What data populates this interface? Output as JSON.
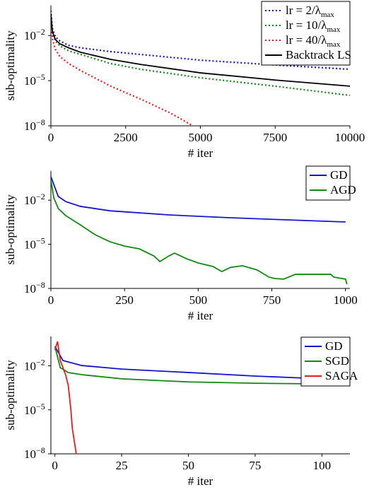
{
  "chart_data": [
    {
      "type": "line",
      "xlabel": "# iter",
      "ylabel": "sub-optimality",
      "xlim": [
        0,
        10000
      ],
      "ylim": [
        1e-08,
        1
      ],
      "yscale": "log",
      "xticks": [
        0,
        2500,
        5000,
        7500,
        10000
      ],
      "yticks": [
        {
          "value": 0.01,
          "label": "10−2"
        },
        {
          "value": 1e-05,
          "label": "10−5"
        },
        {
          "value": 1e-08,
          "label": "10−8"
        }
      ],
      "legend": "upper right",
      "series": [
        {
          "name": "lr = 2/λmax",
          "color": "#1515d0",
          "linestyle": "dotted",
          "x": [
            0,
            50,
            150,
            300,
            600,
            1000,
            2000,
            3000,
            5000,
            7500,
            10000
          ],
          "values": [
            0.45,
            0.03,
            0.0082,
            0.0043,
            0.0022,
            0.0015,
            0.00085,
            0.00055,
            0.00023,
            0.00011,
            5.7e-05
          ]
        },
        {
          "name": "lr = 10/λmax",
          "color": "#108a10",
          "linestyle": "dotted",
          "x": [
            0,
            50,
            150,
            300,
            600,
            1000,
            2000,
            3000,
            5000,
            7500,
            10000
          ],
          "values": [
            0.26,
            0.0175,
            0.0043,
            0.002,
            0.00095,
            0.00055,
            0.000135,
            5.7e-05,
            1.55e-05,
            4.3e-06,
            1.05e-06
          ]
        },
        {
          "name": "lr = 40/λmax",
          "color": "#e81c1c",
          "linestyle": "dotted",
          "x": [
            0,
            50,
            150,
            300,
            600,
            1000,
            2000,
            3000,
            4000,
            4750
          ],
          "values": [
            0.26,
            0.006,
            0.0012,
            0.0004,
            0.000135,
            4.6e-05,
            4.3e-06,
            6e-07,
            7e-08,
            1e-08
          ]
        },
        {
          "name": "Backtrack LS",
          "color": "#000000",
          "linestyle": "solid",
          "x": [
            0,
            50,
            150,
            300,
            600,
            1000,
            2000,
            3000,
            5000,
            7500,
            10000
          ],
          "values": [
            0.26,
            0.0175,
            0.0054,
            0.0028,
            0.0015,
            0.00076,
            0.00026,
            0.00012,
            3.3e-05,
            1.1e-05,
            4.3e-06
          ]
        }
      ]
    },
    {
      "type": "line",
      "xlabel": "# iter",
      "ylabel": "sub-optimality",
      "xlim": [
        0,
        1015
      ],
      "ylim": [
        1e-08,
        1
      ],
      "yscale": "log",
      "xticks": [
        0,
        250,
        500,
        750,
        1000
      ],
      "yticks": [
        {
          "value": 0.01,
          "label": "10−2"
        },
        {
          "value": 1e-05,
          "label": "10−5"
        },
        {
          "value": 1e-08,
          "label": "10−8"
        }
      ],
      "legend": "upper right",
      "series": [
        {
          "name": "GD",
          "color": "#1515d0",
          "linestyle": "solid",
          "x": [
            0,
            25,
            50,
            100,
            200,
            400,
            600,
            800,
            1000
          ],
          "values": [
            0.4,
            0.018,
            0.0081,
            0.0038,
            0.0019,
            0.001,
            0.00065,
            0.00046,
            0.00033
          ]
        },
        {
          "name": "AGD",
          "color": "#108a10",
          "linestyle": "solid",
          "x": [
            0,
            10,
            25,
            50,
            100,
            150,
            200,
            250,
            300,
            350,
            370,
            400,
            420,
            460,
            500,
            550,
            580,
            610,
            650,
            700,
            740,
            760,
            790,
            830,
            950,
            960,
            1000,
            1005
          ],
          "values": [
            0.23,
            0.014,
            0.0027,
            0.0009,
            0.00021,
            4.5e-05,
            1.5e-05,
            7.6e-06,
            4.9e-06,
            1.6e-06,
            6.7e-07,
            1.6e-06,
            2.5e-06,
            1.05e-06,
            5.4e-07,
            3.1e-07,
            1.4e-07,
            2.7e-07,
            3.5e-07,
            1.8e-07,
            5.9e-08,
            4.7e-08,
            4.3e-08,
            9.1e-08,
            9.1e-08,
            5.9e-08,
            4.3e-08,
            1.95e-08
          ]
        }
      ]
    },
    {
      "type": "line",
      "xlabel": "# iter",
      "ylabel": "sub-optimality",
      "xlim": [
        -1.5,
        110.5
      ],
      "ylim": [
        1e-08,
        1
      ],
      "yscale": "log",
      "xticks": [
        0,
        25,
        50,
        75,
        100
      ],
      "yticks": [
        {
          "value": 0.01,
          "label": "10−2"
        },
        {
          "value": 1e-05,
          "label": "10−5"
        },
        {
          "value": 1e-08,
          "label": "10−8"
        }
      ],
      "legend": "upper right",
      "series": [
        {
          "name": "GD",
          "color": "#1515d0",
          "linestyle": "solid",
          "x": [
            0,
            3,
            10,
            25,
            50,
            75,
            100,
            110
          ],
          "values": [
            0.21,
            0.023,
            0.0105,
            0.006,
            0.0035,
            0.002,
            0.0013,
            0.0011
          ]
        },
        {
          "name": "SGD",
          "color": "#108a10",
          "linestyle": "solid",
          "x": [
            0,
            2,
            5,
            10,
            25,
            50,
            75,
            100,
            110
          ],
          "values": [
            0.21,
            0.0075,
            0.0035,
            0.0025,
            0.0013,
            0.0008,
            0.00065,
            0.00058,
            0.00058
          ]
        },
        {
          "name": "SAGA",
          "color": "#e81c1c",
          "linestyle": "solid",
          "x": [
            0,
            1,
            2,
            4,
            5,
            6,
            6.5,
            8
          ],
          "values": [
            0.12,
            0.46,
            0.023,
            0.0025,
            0.00047,
            9.5e-06,
            5.9e-07,
            1e-08
          ]
        }
      ]
    }
  ]
}
